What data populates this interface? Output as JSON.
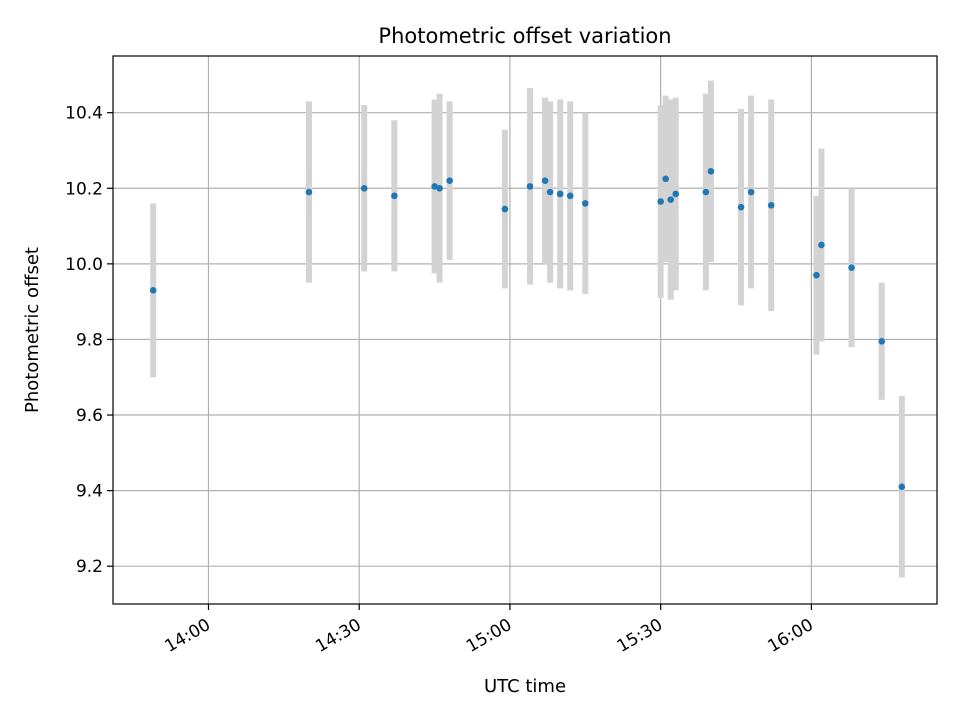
{
  "chart_data": {
    "type": "scatter",
    "title": "Photometric offset variation",
    "xlabel": "UTC time",
    "ylabel": "Photometric offset",
    "x_ticks": [
      "14:00",
      "14:30",
      "15:00",
      "15:30",
      "16:00"
    ],
    "y_ticks": [
      "9.2",
      "9.4",
      "9.6",
      "9.8",
      "10.0",
      "10.2",
      "10.4"
    ],
    "xlim": [
      "13:41",
      "16:25"
    ],
    "ylim": [
      9.1,
      10.55
    ],
    "grid": true,
    "colors": {
      "point": "#1f77b4",
      "errorbar": "#d3d3d3",
      "grid": "#b0b0b0"
    },
    "points": [
      {
        "x": "13:49",
        "y": 9.93,
        "err": 0.23
      },
      {
        "x": "14:20",
        "y": 10.19,
        "err": 0.24
      },
      {
        "x": "14:31",
        "y": 10.2,
        "err": 0.22
      },
      {
        "x": "14:37",
        "y": 10.18,
        "err": 0.2
      },
      {
        "x": "14:45",
        "y": 10.205,
        "err": 0.23
      },
      {
        "x": "14:46",
        "y": 10.2,
        "err": 0.25
      },
      {
        "x": "14:48",
        "y": 10.22,
        "err": 0.21
      },
      {
        "x": "14:59",
        "y": 10.145,
        "err": 0.21
      },
      {
        "x": "15:04",
        "y": 10.205,
        "err": 0.26
      },
      {
        "x": "15:07",
        "y": 10.22,
        "err": 0.22
      },
      {
        "x": "15:08",
        "y": 10.19,
        "err": 0.24
      },
      {
        "x": "15:10",
        "y": 10.185,
        "err": 0.25
      },
      {
        "x": "15:12",
        "y": 10.18,
        "err": 0.25
      },
      {
        "x": "15:15",
        "y": 10.16,
        "err": 0.24
      },
      {
        "x": "15:30",
        "y": 10.165,
        "err": 0.255
      },
      {
        "x": "15:31",
        "y": 10.225,
        "err": 0.22
      },
      {
        "x": "15:32",
        "y": 10.17,
        "err": 0.265
      },
      {
        "x": "15:33",
        "y": 10.185,
        "err": 0.255
      },
      {
        "x": "15:39",
        "y": 10.19,
        "err": 0.26
      },
      {
        "x": "15:40",
        "y": 10.245,
        "err": 0.24
      },
      {
        "x": "15:46",
        "y": 10.15,
        "err": 0.26
      },
      {
        "x": "15:48",
        "y": 10.19,
        "err": 0.255
      },
      {
        "x": "15:52",
        "y": 10.155,
        "err": 0.28
      },
      {
        "x": "16:01",
        "y": 9.97,
        "err": 0.21
      },
      {
        "x": "16:02",
        "y": 10.05,
        "err": 0.255
      },
      {
        "x": "16:08",
        "y": 9.99,
        "err": 0.21
      },
      {
        "x": "16:14",
        "y": 9.795,
        "err": 0.155
      },
      {
        "x": "16:18",
        "y": 9.41,
        "err": 0.24
      }
    ]
  }
}
